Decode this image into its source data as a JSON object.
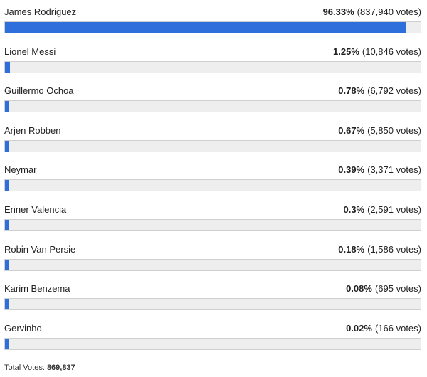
{
  "poll": {
    "options": [
      {
        "name": "James Rodriguez",
        "percent_label": "96.33%",
        "votes_label": "(837,940 votes)",
        "percent": 96.33
      },
      {
        "name": "Lionel Messi",
        "percent_label": "1.25%",
        "votes_label": "(10,846 votes)",
        "percent": 1.25
      },
      {
        "name": "Guillermo Ochoa",
        "percent_label": "0.78%",
        "votes_label": "(6,792 votes)",
        "percent": 0.78
      },
      {
        "name": "Arjen Robben",
        "percent_label": "0.67%",
        "votes_label": "(5,850 votes)",
        "percent": 0.67
      },
      {
        "name": "Neymar",
        "percent_label": "0.39%",
        "votes_label": "(3,371 votes)",
        "percent": 0.39
      },
      {
        "name": "Enner Valencia",
        "percent_label": "0.3%",
        "votes_label": "(2,591 votes)",
        "percent": 0.3
      },
      {
        "name": "Robin Van Persie",
        "percent_label": "0.18%",
        "votes_label": "(1,586 votes)",
        "percent": 0.18
      },
      {
        "name": "Karim Benzema",
        "percent_label": "0.08%",
        "votes_label": "(695 votes)",
        "percent": 0.08
      },
      {
        "name": "Gervinho",
        "percent_label": "0.02%",
        "votes_label": "(166 votes)",
        "percent": 0.02
      }
    ],
    "total_label": "Total Votes:",
    "total_value": "869,837"
  },
  "colors": {
    "bar_fill": "#2f6fdc",
    "bar_track": "#eeeeee"
  }
}
